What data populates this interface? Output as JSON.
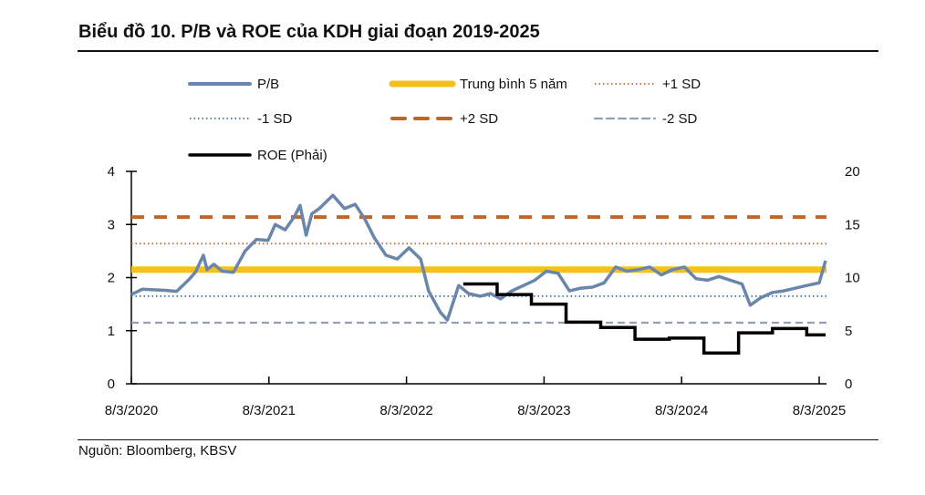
{
  "title": "Biểu đồ 10. P/B và ROE của KDH giai đoạn 2019-2025",
  "source": "Nguồn: Bloomberg, KBSV",
  "chart_data": {
    "type": "line",
    "title": "Biểu đồ 10. P/B và ROE của KDH giai đoạn 2019-2025",
    "x_ticks": [
      "8/3/2020",
      "8/3/2021",
      "8/3/2022",
      "8/3/2023",
      "8/3/2024",
      "8/3/2025"
    ],
    "x_range": [
      "2020-08-03",
      "2025-08-03"
    ],
    "y_left": {
      "range": [
        0,
        4
      ],
      "ticks": [
        "0",
        "1",
        "2",
        "3",
        "4"
      ]
    },
    "y_right": {
      "range": [
        0,
        20
      ],
      "ticks": [
        "0",
        "5",
        "10",
        "15",
        "20"
      ]
    },
    "legend_position": "top",
    "grid": false,
    "series": [
      {
        "name": "P/B",
        "axis": "left",
        "style": "solid",
        "color": "#6a87ab",
        "points": [
          [
            "2020-08-03",
            1.68
          ],
          [
            "2020-09-01",
            1.78
          ],
          [
            "2020-10-01",
            1.77
          ],
          [
            "2020-11-01",
            1.76
          ],
          [
            "2020-12-01",
            1.74
          ],
          [
            "2021-01-01",
            1.95
          ],
          [
            "2021-01-20",
            2.1
          ],
          [
            "2021-02-10",
            2.42
          ],
          [
            "2021-02-20",
            2.15
          ],
          [
            "2021-03-10",
            2.25
          ],
          [
            "2021-04-01",
            2.12
          ],
          [
            "2021-05-01",
            2.1
          ],
          [
            "2021-06-01",
            2.5
          ],
          [
            "2021-07-01",
            2.72
          ],
          [
            "2021-08-01",
            2.7
          ],
          [
            "2021-08-20",
            3.0
          ],
          [
            "2021-09-15",
            2.9
          ],
          [
            "2021-10-10",
            3.15
          ],
          [
            "2021-10-25",
            3.36
          ],
          [
            "2021-11-10",
            2.8
          ],
          [
            "2021-11-25",
            3.2
          ],
          [
            "2021-12-15",
            3.3
          ],
          [
            "2022-01-20",
            3.55
          ],
          [
            "2022-02-20",
            3.3
          ],
          [
            "2022-03-20",
            3.38
          ],
          [
            "2022-04-15",
            3.1
          ],
          [
            "2022-05-10",
            2.75
          ],
          [
            "2022-06-10",
            2.42
          ],
          [
            "2022-07-10",
            2.35
          ],
          [
            "2022-08-10",
            2.56
          ],
          [
            "2022-09-10",
            2.35
          ],
          [
            "2022-10-01",
            1.75
          ],
          [
            "2022-11-01",
            1.35
          ],
          [
            "2022-11-20",
            1.2
          ],
          [
            "2022-12-20",
            1.85
          ],
          [
            "2023-01-15",
            1.7
          ],
          [
            "2023-02-15",
            1.65
          ],
          [
            "2023-03-15",
            1.7
          ],
          [
            "2023-04-10",
            1.6
          ],
          [
            "2023-05-10",
            1.75
          ],
          [
            "2023-06-10",
            1.85
          ],
          [
            "2023-07-10",
            1.95
          ],
          [
            "2023-08-10",
            2.12
          ],
          [
            "2023-09-10",
            2.08
          ],
          [
            "2023-10-10",
            1.75
          ],
          [
            "2023-11-10",
            1.8
          ],
          [
            "2023-12-10",
            1.82
          ],
          [
            "2024-01-10",
            1.9
          ],
          [
            "2024-02-10",
            2.2
          ],
          [
            "2024-03-10",
            2.12
          ],
          [
            "2024-04-10",
            2.15
          ],
          [
            "2024-05-10",
            2.2
          ],
          [
            "2024-06-10",
            2.05
          ],
          [
            "2024-07-10",
            2.15
          ],
          [
            "2024-08-10",
            2.2
          ],
          [
            "2024-09-10",
            1.98
          ],
          [
            "2024-10-10",
            1.95
          ],
          [
            "2024-11-10",
            2.02
          ],
          [
            "2024-12-10",
            1.95
          ],
          [
            "2025-01-10",
            1.88
          ],
          [
            "2025-02-01",
            1.48
          ],
          [
            "2025-03-01",
            1.62
          ],
          [
            "2025-04-01",
            1.72
          ],
          [
            "2025-05-01",
            1.75
          ],
          [
            "2025-06-01",
            1.8
          ],
          [
            "2025-07-01",
            1.85
          ],
          [
            "2025-08-03",
            1.9
          ],
          [
            "2025-08-20",
            2.32
          ]
        ]
      },
      {
        "name": "Trung bình 5 năm",
        "axis": "left",
        "style": "thick",
        "color": "#f5c018",
        "value": 2.15
      },
      {
        "name": "+1 SD",
        "axis": "left",
        "style": "dotted",
        "color": "#c0652a",
        "value": 2.64
      },
      {
        "name": "-1 SD",
        "axis": "left",
        "style": "dotted",
        "color": "#3f6fa8",
        "value": 1.65
      },
      {
        "name": "+2 SD",
        "axis": "left",
        "style": "dashed",
        "color": "#c0652a",
        "value": 3.14
      },
      {
        "name": "-2 SD",
        "axis": "left",
        "style": "dashed",
        "color": "#8fa0b8",
        "value": 1.15
      },
      {
        "name": "ROE (Phải)",
        "axis": "right",
        "style": "step",
        "color": "#000000",
        "points": [
          [
            "2023-01-01",
            9.4
          ],
          [
            "2023-04-01",
            8.4
          ],
          [
            "2023-07-01",
            7.5
          ],
          [
            "2023-10-01",
            5.8
          ],
          [
            "2024-01-01",
            5.3
          ],
          [
            "2024-04-01",
            4.2
          ],
          [
            "2024-07-01",
            4.3
          ],
          [
            "2024-10-01",
            2.9
          ],
          [
            "2025-01-01",
            4.8
          ],
          [
            "2025-04-01",
            5.2
          ],
          [
            "2025-07-01",
            4.6
          ],
          [
            "2025-08-20",
            4.6
          ]
        ]
      }
    ]
  }
}
